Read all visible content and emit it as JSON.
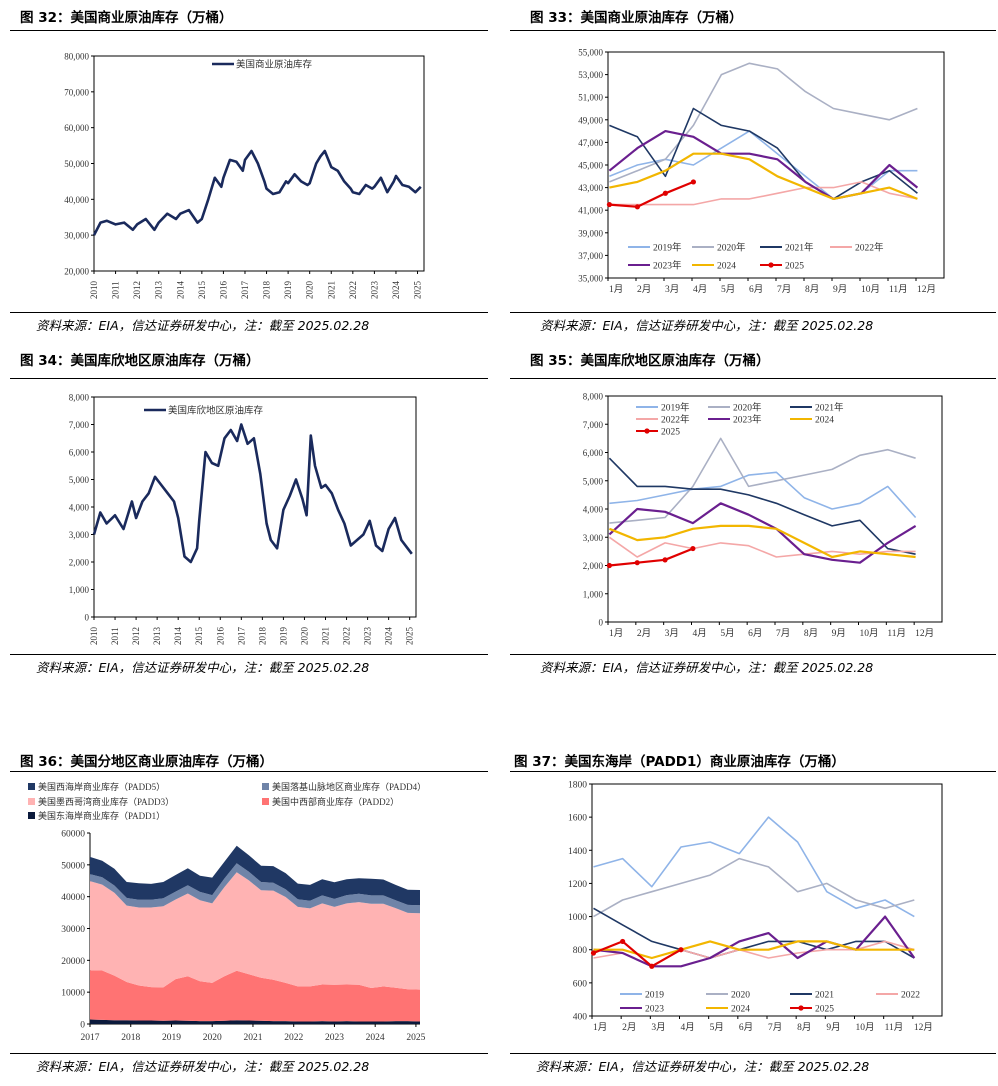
{
  "source_note": "资料来源：EIA，信达证券研发中心，注：截至 2025.02.28",
  "colors": {
    "y2019": "#8fb4e8",
    "y2020": "#aab0c4",
    "y2021": "#1f3864",
    "y2022": "#f4a7a7",
    "y2023": "#6a1f8f",
    "y2024": "#f2b600",
    "y2025": "#e00000",
    "navy": "#1a2a5c",
    "padd5": "#203864",
    "padd4": "#6f84a8",
    "padd3": "#ffb3b3",
    "padd2": "#ff7373",
    "padd1": "#0b1a3c"
  },
  "chart_data": [
    {
      "id": "fig32",
      "type": "line",
      "title": "图 32：美国商业原油库存（万桶）",
      "legend": [
        "美国商业原油库存"
      ],
      "ylim": [
        20000,
        80000
      ],
      "yticks": [
        "20,000",
        "30,000",
        "40,000",
        "50,000",
        "60,000",
        "70,000",
        "80,000"
      ],
      "xticks": [
        "2010",
        "2011",
        "2012",
        "2013",
        "2014",
        "2015",
        "2016",
        "2017",
        "2018",
        "2019",
        "2020",
        "2021",
        "2022",
        "2023",
        "2024",
        "2025"
      ],
      "x": [
        2010,
        2010.3,
        2010.6,
        2011,
        2011.4,
        2011.8,
        2012,
        2012.4,
        2012.8,
        2013,
        2013.4,
        2013.8,
        2014,
        2014.4,
        2014.8,
        2015,
        2015.3,
        2015.6,
        2015.9,
        2016,
        2016.3,
        2016.6,
        2016.9,
        2017,
        2017.3,
        2017.6,
        2017.9,
        2018,
        2018.3,
        2018.6,
        2018.9,
        2019,
        2019.3,
        2019.6,
        2019.9,
        2020,
        2020.3,
        2020.5,
        2020.7,
        2021,
        2021.3,
        2021.6,
        2021.9,
        2022,
        2022.3,
        2022.6,
        2022.9,
        2023,
        2023.3,
        2023.6,
        2023.9,
        2024,
        2024.3,
        2024.6,
        2024.9,
        2025.15
      ],
      "values": [
        30000,
        33500,
        34000,
        33000,
        33500,
        31500,
        33000,
        34500,
        31500,
        33500,
        36000,
        34500,
        36000,
        37000,
        33500,
        34500,
        40000,
        46000,
        43500,
        46000,
        51000,
        50500,
        48000,
        51000,
        53500,
        50000,
        45000,
        43000,
        41500,
        42000,
        45000,
        44500,
        47000,
        45000,
        44000,
        44500,
        50000,
        52000,
        53500,
        49000,
        48000,
        45000,
        43000,
        42000,
        41500,
        44000,
        43000,
        43500,
        46000,
        42000,
        45000,
        46500,
        44000,
        43500,
        42000,
        43500
      ]
    },
    {
      "id": "fig33",
      "type": "line",
      "title": "图 33：美国商业原油库存（万桶）",
      "ylim": [
        35000,
        55000
      ],
      "yticks": [
        "35,000",
        "37,000",
        "39,000",
        "41,000",
        "43,000",
        "45,000",
        "47,000",
        "49,000",
        "51,000",
        "53,000",
        "55,000"
      ],
      "xticks": [
        "1月",
        "2月",
        "3月",
        "4月",
        "5月",
        "6月",
        "7月",
        "8月",
        "9月",
        "10月",
        "11月",
        "12月"
      ],
      "series": [
        {
          "name": "2019年",
          "color_key": "y2019",
          "values": [
            44000,
            45000,
            45500,
            45000,
            46500,
            48000,
            46000,
            44000,
            42000,
            42500,
            44500,
            44500
          ]
        },
        {
          "name": "2020年",
          "color_key": "y2020",
          "values": [
            43500,
            44500,
            45500,
            48500,
            53000,
            54000,
            53500,
            51500,
            50000,
            49500,
            49000,
            50000
          ]
        },
        {
          "name": "2021年",
          "color_key": "y2021",
          "values": [
            48500,
            47500,
            44000,
            50000,
            48500,
            48000,
            46500,
            43500,
            42000,
            43500,
            44500,
            42500
          ]
        },
        {
          "name": "2022年",
          "color_key": "y2022",
          "values": [
            41500,
            41500,
            41500,
            41500,
            42000,
            42000,
            42500,
            43000,
            43000,
            43500,
            42500,
            42000
          ]
        },
        {
          "name": "2023年",
          "color_key": "y2023",
          "values": [
            44500,
            46500,
            48000,
            47500,
            46000,
            46000,
            45500,
            43500,
            42000,
            42500,
            45000,
            43000
          ]
        },
        {
          "name": "2024",
          "color_key": "y2024",
          "values": [
            43000,
            43500,
            44500,
            46000,
            46000,
            45500,
            44000,
            43000,
            42000,
            42500,
            43000,
            42000
          ]
        },
        {
          "name": "2025",
          "color_key": "y2025",
          "values": [
            41500,
            41300,
            42500,
            43500
          ]
        }
      ]
    },
    {
      "id": "fig34",
      "type": "line",
      "title": "图 34：美国库欣地区原油库存（万桶）",
      "legend": [
        "美国库欣地区原油库存"
      ],
      "ylim": [
        0,
        8000
      ],
      "yticks": [
        "0",
        "1,000",
        "2,000",
        "3,000",
        "4,000",
        "5,000",
        "6,000",
        "7,000",
        "8,000"
      ],
      "xticks": [
        "2010",
        "2011",
        "2012",
        "2013",
        "2014",
        "2015",
        "2016",
        "2017",
        "2018",
        "2019",
        "2020",
        "2021",
        "2022",
        "2023",
        "2024",
        "2025"
      ],
      "x": [
        2010,
        2010.3,
        2010.6,
        2011,
        2011.4,
        2011.8,
        2012,
        2012.3,
        2012.6,
        2012.9,
        2013.2,
        2013.5,
        2013.8,
        2014,
        2014.3,
        2014.6,
        2014.9,
        2015,
        2015.3,
        2015.6,
        2015.9,
        2016.2,
        2016.5,
        2016.8,
        2017,
        2017.3,
        2017.6,
        2017.9,
        2018.2,
        2018.4,
        2018.7,
        2019,
        2019.3,
        2019.6,
        2019.9,
        2020.1,
        2020.3,
        2020.5,
        2020.8,
        2021,
        2021.3,
        2021.6,
        2021.9,
        2022.2,
        2022.5,
        2022.8,
        2023.1,
        2023.4,
        2023.7,
        2024,
        2024.3,
        2024.6,
        2024.9,
        2025.1
      ],
      "values": [
        3000,
        3800,
        3400,
        3700,
        3200,
        4200,
        3600,
        4200,
        4500,
        5100,
        4800,
        4500,
        4200,
        3600,
        2200,
        2000,
        2500,
        3500,
        6000,
        5600,
        5500,
        6500,
        6800,
        6400,
        7000,
        6300,
        6500,
        5200,
        3400,
        2800,
        2500,
        3900,
        4400,
        5000,
        4300,
        3700,
        6600,
        5500,
        4700,
        4800,
        4500,
        3900,
        3400,
        2600,
        2800,
        3000,
        3500,
        2600,
        2400,
        3200,
        3600,
        2800,
        2500,
        2300
      ]
    },
    {
      "id": "fig35",
      "type": "line",
      "title": "图 35：美国库欣地区原油库存（万桶）",
      "ylim": [
        0,
        8000
      ],
      "yticks": [
        "0",
        "1,000",
        "2,000",
        "3,000",
        "4,000",
        "5,000",
        "6,000",
        "7,000",
        "8,000"
      ],
      "xticks": [
        "1月",
        "2月",
        "3月",
        "4月",
        "5月",
        "6月",
        "7月",
        "8月",
        "9月",
        "10月",
        "11月",
        "12月"
      ],
      "series": [
        {
          "name": "2019年",
          "color_key": "y2019",
          "values": [
            4200,
            4300,
            4500,
            4700,
            4800,
            5200,
            5300,
            4400,
            4000,
            4200,
            4800,
            3700
          ]
        },
        {
          "name": "2020年",
          "color_key": "y2020",
          "values": [
            3500,
            3600,
            3700,
            4800,
            6500,
            4800,
            5000,
            5200,
            5400,
            5900,
            6100,
            5800
          ]
        },
        {
          "name": "2021年",
          "color_key": "y2021",
          "values": [
            5800,
            4800,
            4800,
            4700,
            4700,
            4500,
            4200,
            3800,
            3400,
            3600,
            2600,
            2400
          ]
        },
        {
          "name": "2022年",
          "color_key": "y2022",
          "values": [
            3000,
            2300,
            2800,
            2600,
            2800,
            2700,
            2300,
            2400,
            2500,
            2400,
            2500,
            2500
          ]
        },
        {
          "name": "2023年",
          "color_key": "y2023",
          "values": [
            3100,
            4000,
            3900,
            3500,
            4200,
            3800,
            3300,
            2400,
            2200,
            2100,
            2800,
            3400
          ]
        },
        {
          "name": "2024",
          "color_key": "y2024",
          "values": [
            3300,
            2900,
            3000,
            3300,
            3400,
            3400,
            3300,
            2800,
            2300,
            2500,
            2400,
            2300
          ]
        },
        {
          "name": "2025",
          "color_key": "y2025",
          "values": [
            2000,
            2100,
            2200,
            2600
          ]
        }
      ]
    },
    {
      "id": "fig36",
      "type": "area",
      "title": "图 36：美国分地区商业原油库存（万桶）",
      "ylim": [
        0,
        60000
      ],
      "yticks": [
        "0",
        "10000",
        "20000",
        "30000",
        "40000",
        "50000",
        "60000"
      ],
      "xticks": [
        "2017",
        "2018",
        "2019",
        "2020",
        "2021",
        "2022",
        "2023",
        "2024",
        "2025"
      ],
      "x": [
        2017,
        2017.3,
        2017.6,
        2017.9,
        2018.2,
        2018.5,
        2018.8,
        2019.1,
        2019.4,
        2019.7,
        2020,
        2020.3,
        2020.6,
        2020.9,
        2021.2,
        2021.5,
        2021.8,
        2022.1,
        2022.4,
        2022.7,
        2023,
        2023.3,
        2023.6,
        2023.9,
        2024.2,
        2024.5,
        2024.8,
        2025.1
      ],
      "series": [
        {
          "name": "美国东海岸商业库存（PADD1）",
          "color_key": "padd1",
          "values": [
            1400,
            1300,
            1200,
            1200,
            1100,
            1100,
            1000,
            1100,
            1000,
            900,
            900,
            1000,
            1200,
            1100,
            1000,
            900,
            900,
            800,
            800,
            900,
            800,
            900,
            800,
            800,
            800,
            900,
            900,
            800
          ]
        },
        {
          "name": "美国中西部商业库存（PADD2）",
          "color_key": "padd2",
          "values": [
            15500,
            15500,
            14000,
            12000,
            11000,
            10500,
            10500,
            13000,
            14000,
            12500,
            12000,
            14000,
            15500,
            14500,
            13500,
            13000,
            12000,
            11000,
            11000,
            11500,
            11500,
            11500,
            11500,
            10500,
            11000,
            10500,
            10000,
            10000
          ]
        },
        {
          "name": "美国墨西哥湾商业库存（PADD3）",
          "color_key": "padd3",
          "values": [
            28000,
            27000,
            26000,
            24000,
            24500,
            25000,
            25500,
            25000,
            26000,
            25500,
            25000,
            28000,
            31000,
            29500,
            27500,
            28000,
            27000,
            25000,
            24500,
            25500,
            24500,
            25500,
            26000,
            26500,
            26000,
            25000,
            24000,
            24000
          ]
        },
        {
          "name": "美国落基山脉地区商业库存（PADD4）",
          "color_key": "padd4",
          "values": [
            2200,
            2300,
            2300,
            2400,
            2400,
            2400,
            2500,
            2500,
            2600,
            2600,
            2600,
            2700,
            2800,
            2700,
            2600,
            2500,
            2400,
            2400,
            2400,
            2500,
            2500,
            2600,
            2600,
            2600,
            2600,
            2500,
            2500,
            2500
          ]
        },
        {
          "name": "美国西海岸商业库存（PADD5）",
          "color_key": "padd5",
          "values": [
            5400,
            5200,
            5300,
            5000,
            5200,
            5000,
            5100,
            5200,
            5300,
            5100,
            5500,
            5300,
            5500,
            5200,
            5100,
            5200,
            5100,
            4900,
            5000,
            5100,
            5200,
            5000,
            4900,
            5200,
            5000,
            4800,
            4800,
            4800
          ]
        }
      ]
    },
    {
      "id": "fig37",
      "type": "line",
      "title": "图 37：美国东海岸（PADD1）商业原油库存（万桶）",
      "ylim": [
        400,
        1800
      ],
      "yticks": [
        "400",
        "600",
        "800",
        "1000",
        "1200",
        "1400",
        "1600",
        "1800"
      ],
      "xticks": [
        "1月",
        "2月",
        "3月",
        "4月",
        "5月",
        "6月",
        "7月",
        "8月",
        "9月",
        "10月",
        "11月",
        "12月"
      ],
      "series": [
        {
          "name": "2019",
          "color_key": "y2019",
          "values": [
            1300,
            1350,
            1180,
            1420,
            1450,
            1380,
            1600,
            1450,
            1150,
            1050,
            1100,
            1000
          ]
        },
        {
          "name": "2020",
          "color_key": "y2020",
          "values": [
            1000,
            1100,
            1150,
            1200,
            1250,
            1350,
            1300,
            1150,
            1200,
            1100,
            1050,
            1100
          ]
        },
        {
          "name": "2021",
          "color_key": "y2021",
          "values": [
            1050,
            950,
            850,
            800,
            750,
            800,
            850,
            850,
            800,
            850,
            850,
            750
          ]
        },
        {
          "name": "2022",
          "color_key": "y2022",
          "values": [
            750,
            780,
            700,
            800,
            750,
            800,
            750,
            780,
            800,
            800,
            850,
            800
          ]
        },
        {
          "name": "2023",
          "color_key": "y2023",
          "values": [
            800,
            780,
            700,
            700,
            750,
            850,
            900,
            750,
            850,
            800,
            1000,
            750
          ]
        },
        {
          "name": "2024",
          "color_key": "y2024",
          "values": [
            800,
            800,
            750,
            800,
            850,
            800,
            800,
            850,
            850,
            800,
            800,
            800
          ]
        },
        {
          "name": "2025",
          "color_key": "y2025",
          "values": [
            780,
            850,
            700,
            800
          ]
        }
      ]
    }
  ]
}
